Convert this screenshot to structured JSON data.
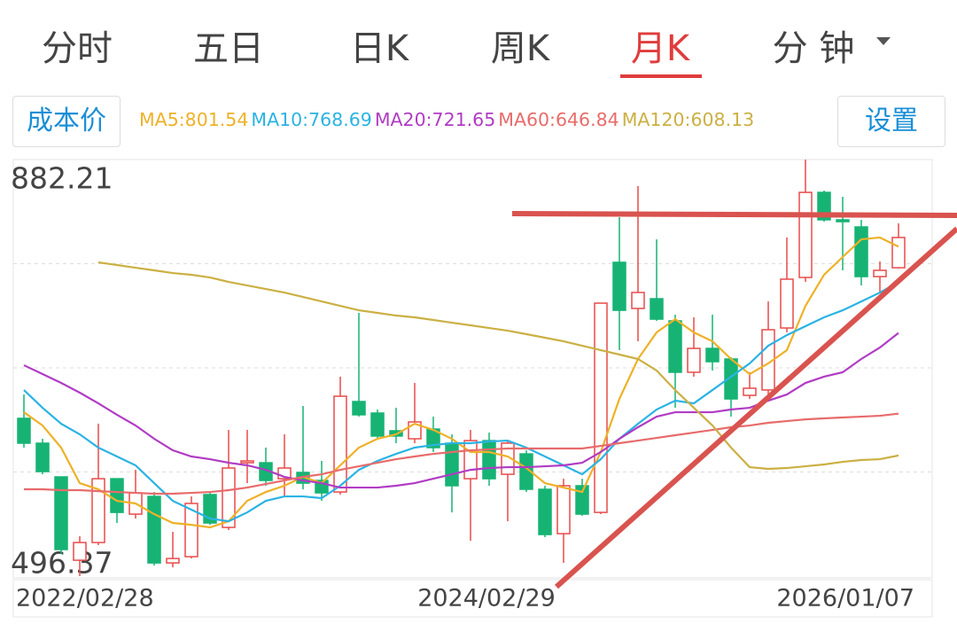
{
  "tabs": [
    "分时",
    "五日",
    "日K",
    "周K",
    "月K",
    "分 钟"
  ],
  "active_tab": 4,
  "cost_button": "成本价",
  "settings_button": "设置",
  "chart_data": {
    "type": "candlestick",
    "categories": [
      "2022/02/28",
      null,
      null,
      null,
      null,
      null,
      null,
      null,
      null,
      null,
      null,
      null,
      null,
      null,
      null,
      null,
      null,
      null,
      null,
      null,
      null,
      null,
      null,
      null,
      "2024/02/29",
      null,
      null,
      null,
      null,
      null,
      null,
      null,
      null,
      null,
      null,
      null,
      null,
      null,
      null,
      null,
      null,
      null,
      null,
      null,
      null,
      null,
      null,
      "2026/01/07"
    ],
    "open": [
      642.5,
      619.5,
      588.3,
      511.1,
      527.5,
      586.6,
      553.8,
      570.2,
      508.6,
      514.4,
      571.9,
      541.5,
      601.4,
      601.4,
      586.6,
      592.4,
      585.0,
      574.3,
      658.1,
      647.4,
      631.0,
      623.6,
      632.6,
      619.5,
      586.6,
      621.9,
      590.7,
      609.6,
      576.8,
      535.7,
      580.1,
      555.4,
      787.0,
      744.3,
      753.3,
      732.8,
      685.2,
      707.3,
      697.5,
      663.8,
      668.8,
      726.2,
      773.0,
      851.8,
      826.4,
      819.8,
      773.8,
      782.0
    ],
    "high": [
      664.6,
      623.6,
      588.3,
      533.3,
      637.5,
      586.6,
      594.9,
      574.3,
      537.4,
      570.2,
      574.3,
      631.8,
      631.8,
      615.4,
      627.7,
      654.0,
      603.1,
      681.1,
      740.2,
      650.7,
      652.3,
      675.3,
      644.1,
      627.7,
      631.8,
      629.3,
      621.1,
      612.9,
      580.1,
      586.6,
      586.6,
      749.2,
      828.8,
      857.6,
      808.3,
      738.5,
      736.1,
      738.5,
      699.1,
      685.2,
      750.8,
      810.0,
      882.21,
      853.5,
      847.7,
      826.4,
      787.8,
      823.1
    ],
    "low": [
      615.4,
      590.7,
      516.9,
      496.37,
      525.1,
      545.6,
      549.7,
      506.2,
      504.5,
      512.7,
      543.9,
      539.0,
      582.5,
      580.1,
      570.2,
      576.8,
      566.1,
      571.9,
      644.1,
      622.8,
      619.5,
      619.5,
      611.3,
      555.4,
      529.2,
      580.1,
      547.2,
      574.3,
      532.5,
      508.6,
      552.2,
      553.8,
      705.7,
      713.9,
      732.8,
      652.3,
      681.1,
      686.8,
      644.1,
      660.5,
      664.6,
      722.1,
      768.9,
      824.7,
      779.6,
      765.6,
      759.1,
      781.2
    ],
    "close": [
      619.5,
      593.2,
      521.0,
      527.5,
      586.6,
      555.4,
      573.5,
      508.6,
      512.7,
      563.7,
      545.6,
      596.5,
      603.1,
      585.0,
      596.5,
      582.5,
      573.5,
      663.0,
      645.8,
      626.1,
      626.1,
      639.2,
      615.4,
      580.1,
      621.9,
      586.6,
      619.5,
      576.8,
      534.9,
      580.1,
      553.8,
      749.2,
      742.6,
      759.1,
      734.4,
      685.2,
      707.3,
      695.0,
      660.5,
      670.4,
      724.6,
      771.4,
      851.8,
      826.4,
      824.7,
      773.8,
      779.6,
      810.0
    ],
    "up_color": "#e84a4a",
    "down_color": "#16b374",
    "series": [
      {
        "name": "MA5:801.54",
        "color": "#eeb128",
        "values": [
          648.2,
          635.9,
          615.4,
          582.5,
          576.8,
          566.1,
          563.7,
          553.8,
          545.6,
          543.9,
          541.5,
          547.2,
          566.1,
          574.3,
          580.1,
          588.3,
          582.5,
          599.0,
          615.4,
          623.6,
          627.7,
          637.5,
          631.8,
          623.6,
          611.3,
          611.3,
          607.2,
          596.5,
          582.5,
          578.4,
          574.3,
          611.3,
          660.5,
          697.5,
          722.1,
          734.4,
          722.1,
          713.9,
          697.5,
          683.5,
          693.4,
          705.7,
          746.7,
          775.5,
          791.9,
          808.3,
          810.0,
          801.54
        ]
      },
      {
        "name": "MA10:768.69",
        "color": "#2bb3e3",
        "values": [
          668.7,
          652.3,
          637.5,
          627.7,
          615.4,
          607.2,
          599.0,
          582.5,
          566.1,
          557.9,
          549.7,
          547.2,
          555.4,
          566.1,
          570.2,
          570.2,
          568.6,
          580.1,
          594.8,
          603.1,
          609.6,
          615.4,
          617.8,
          619.5,
          619.5,
          621.1,
          621.9,
          615.4,
          607.2,
          599.0,
          590.7,
          604.7,
          623.6,
          637.5,
          650.7,
          658.9,
          656.4,
          668.7,
          681.1,
          693.4,
          709.8,
          719.6,
          727.9,
          736.1,
          742.6,
          750.8,
          759.0,
          768.69
        ]
      },
      {
        "name": "MA20:721.65",
        "color": "#b03cc4",
        "values": [
          691.7,
          683.5,
          675.3,
          666.3,
          656.4,
          645.8,
          635.9,
          623.6,
          612.9,
          607.2,
          604.7,
          601.4,
          599.0,
          594.8,
          588.3,
          585.0,
          582.5,
          578.4,
          578.4,
          578.4,
          580.1,
          582.5,
          586.6,
          590.7,
          594.8,
          596.5,
          597.3,
          597.3,
          598.1,
          599.0,
          601.4,
          611.3,
          623.6,
          634.3,
          644.1,
          648.2,
          648.2,
          648.2,
          650.7,
          652.3,
          658.9,
          664.6,
          675.3,
          681.1,
          685.2,
          697.5,
          708.1,
          721.65
        ]
      },
      {
        "name": "MA60:646.84",
        "color": "#e86b6b",
        "values": [
          576.8,
          576.8,
          576.0,
          576.0,
          575.1,
          574.3,
          573.5,
          572.7,
          572.7,
          573.5,
          574.3,
          576.0,
          578.4,
          581.7,
          585.0,
          588.3,
          590.7,
          594.8,
          598.1,
          601.4,
          604.7,
          607.2,
          609.6,
          611.3,
          612.9,
          613.7,
          614.6,
          614.6,
          614.6,
          614.6,
          614.6,
          617.0,
          619.5,
          621.9,
          624.4,
          626.9,
          629.3,
          631.8,
          634.3,
          635.9,
          638.4,
          640.0,
          641.6,
          642.5,
          643.3,
          644.1,
          644.9,
          646.84
        ]
      },
      {
        "name": "MA120:608.13",
        "color": "#cbb043",
        "values": [
          null,
          null,
          null,
          null,
          787.0,
          784.5,
          782.0,
          779.6,
          777.1,
          775.5,
          773.0,
          768.9,
          765.6,
          762.3,
          759.0,
          754.9,
          750.8,
          746.7,
          742.6,
          740.2,
          737.7,
          736.1,
          733.6,
          731.1,
          728.7,
          726.2,
          723.7,
          720.5,
          717.2,
          713.9,
          709.8,
          705.7,
          701.6,
          697.5,
          686.8,
          668.7,
          652.3,
          635.9,
          615.4,
          597.3,
          595.7,
          596.5,
          598.1,
          599.8,
          602.2,
          603.9,
          604.7,
          608.13
        ]
      }
    ],
    "ylim": [
      496.37,
      882.21
    ],
    "yticks": [
      882.21,
      496.37
    ],
    "grid_divisions": 4
  }
}
